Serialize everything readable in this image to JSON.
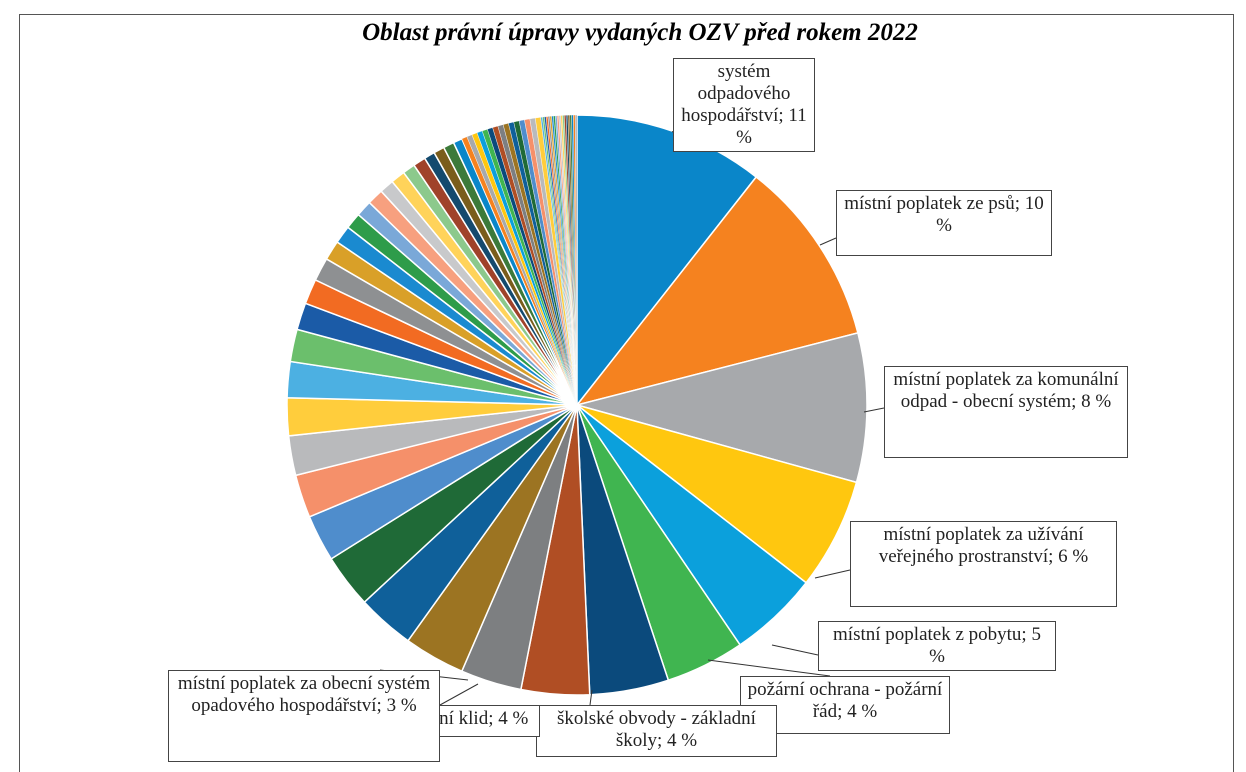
{
  "chart_data": {
    "type": "pie",
    "title": "Oblast právní úpravy vydaných OZV před rokem 2022",
    "values": [
      10.6,
      10.4,
      8.3,
      6.2,
      5.0,
      4.4,
      4.4,
      3.8,
      3.4,
      3.4,
      3.2,
      3.0,
      2.6,
      2.4,
      2.2,
      2.1,
      2.0,
      1.8,
      1.5,
      1.4,
      1.3,
      1.1,
      1.0,
      0.9,
      0.9,
      0.9,
      0.8,
      0.8,
      0.7,
      0.7,
      0.6,
      0.6,
      0.6,
      0.5,
      0.3,
      0.3,
      0.3,
      0.3,
      0.3,
      0.3,
      0.3,
      0.3,
      0.3,
      0.3,
      0.3,
      0.3,
      0.3,
      0.3,
      0.3,
      0.1,
      0.1,
      0.1,
      0.1,
      0.1,
      0.1,
      0.1,
      0.1,
      0.1,
      0.1,
      0.1,
      0.1,
      0.1,
      0.1,
      0.1,
      0.1,
      0.1,
      0.1,
      0.1,
      0.1
    ],
    "value_labels": [
      "systém odpadového hospodářství; 11 %",
      "místní poplatek ze psů; 10 %",
      "místní poplatek za komunální odpad - obecní systém; 8 %",
      "místní poplatek za užívání veřejného prostranství; 6 %",
      "místní poplatek z pobytu; 5 %",
      "požární ochrana - požární řád; 4 %",
      "školské obvody - základní školy; 4 %",
      "noční klid; 4 %",
      "místní poplatek za obecní systém opadového hospodářství; 3 %",
      null,
      null,
      null,
      null,
      null,
      null,
      null,
      null,
      null,
      null,
      null,
      null,
      null,
      null,
      null,
      null,
      null,
      null,
      null,
      null,
      null,
      null,
      null,
      null,
      null,
      null,
      null,
      null,
      null,
      null,
      null,
      null,
      null,
      null,
      null,
      null,
      null,
      null,
      null,
      null,
      null,
      null,
      null,
      null,
      null,
      null,
      null,
      null,
      null,
      null,
      null,
      null,
      null,
      null,
      null,
      null,
      null,
      null,
      null,
      null
    ],
    "colors": [
      "#0a86c9",
      "#f5821f",
      "#a7a9ac",
      "#ffc70f",
      "#0ba0dc",
      "#40b550",
      "#0b4a7c",
      "#b04e24",
      "#7d7f81",
      "#9c7422",
      "#0f609a",
      "#1f6a37",
      "#4f8dcc",
      "#f5906a",
      "#b9babc",
      "#ffcd3c",
      "#4cb0e2",
      "#6bbf6c",
      "#1b5ba7",
      "#f26b22",
      "#8e9092",
      "#d9a028",
      "#1a8ad0",
      "#2e9c4a",
      "#7aa8d8",
      "#f7a07f",
      "#c8c9cb",
      "#ffd35a",
      "#8cc98c",
      "#a0422a",
      "#144a6e",
      "#7a5d1c",
      "#3c7a3a"
    ]
  }
}
